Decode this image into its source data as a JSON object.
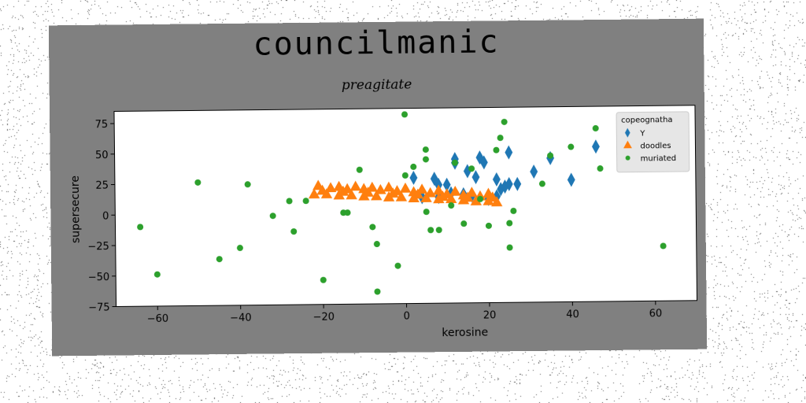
{
  "figure_title": "councilmanic",
  "chart_data": {
    "type": "scatter",
    "title": "preagitate",
    "xlabel": "kerosine",
    "ylabel": "supersecure",
    "xlim": [
      -70,
      70
    ],
    "ylim": [
      -75,
      85
    ],
    "xticks": [
      -60,
      -40,
      -20,
      0,
      20,
      40,
      60
    ],
    "yticks": [
      -75,
      -50,
      -25,
      0,
      25,
      50,
      75
    ],
    "grid": false,
    "legend": {
      "title": "copeognatha",
      "placement": "top-right"
    },
    "series": [
      {
        "name": "Y",
        "marker": "diamond",
        "color": "#1f77b4",
        "points": [
          [
            2,
            28
          ],
          [
            7,
            27
          ],
          [
            8,
            22
          ],
          [
            12,
            40
          ],
          [
            12,
            43
          ],
          [
            15,
            33
          ],
          [
            17,
            28
          ],
          [
            18,
            44
          ],
          [
            19,
            40
          ],
          [
            22,
            26
          ],
          [
            23,
            18
          ],
          [
            24,
            20
          ],
          [
            25,
            48
          ],
          [
            25,
            22
          ],
          [
            27,
            22
          ],
          [
            31,
            32
          ],
          [
            35,
            43
          ],
          [
            40,
            25
          ],
          [
            46,
            52
          ],
          [
            4,
            12
          ],
          [
            8,
            12
          ],
          [
            11,
            15
          ],
          [
            14,
            14
          ],
          [
            16,
            13
          ],
          [
            20,
            10
          ],
          [
            22,
            12
          ],
          [
            10,
            22
          ]
        ]
      },
      {
        "name": "doodles",
        "marker": "triangle",
        "color": "#ff7f0e",
        "points": [
          [
            -21,
            22
          ],
          [
            -18,
            20
          ],
          [
            -16,
            21
          ],
          [
            -14,
            19
          ],
          [
            -12,
            21
          ],
          [
            -10,
            19
          ],
          [
            -8,
            20
          ],
          [
            -6,
            18
          ],
          [
            -4,
            20
          ],
          [
            -2,
            17
          ],
          [
            0,
            19
          ],
          [
            2,
            16
          ],
          [
            4,
            18
          ],
          [
            6,
            15
          ],
          [
            8,
            17
          ],
          [
            10,
            14
          ],
          [
            12,
            16
          ],
          [
            14,
            13
          ],
          [
            16,
            15
          ],
          [
            18,
            12
          ],
          [
            20,
            14
          ],
          [
            21,
            11
          ],
          [
            -22,
            15
          ],
          [
            -19,
            15
          ],
          [
            -16,
            14
          ],
          [
            -13,
            14
          ],
          [
            -10,
            13
          ],
          [
            -7,
            13
          ],
          [
            -4,
            12
          ],
          [
            -1,
            12
          ],
          [
            2,
            11
          ],
          [
            5,
            11
          ],
          [
            8,
            10
          ],
          [
            11,
            10
          ],
          [
            14,
            9
          ],
          [
            17,
            8
          ],
          [
            20,
            8
          ],
          [
            22,
            7
          ],
          [
            -20,
            18
          ],
          [
            -15,
            17
          ],
          [
            -9,
            16
          ],
          [
            -3,
            15
          ],
          [
            3,
            14
          ],
          [
            9,
            12
          ],
          [
            15,
            11
          ]
        ]
      },
      {
        "name": "muriated",
        "marker": "circle",
        "color": "#2ca02c",
        "points": [
          [
            -64,
            -10
          ],
          [
            -60,
            -49
          ],
          [
            -50,
            26
          ],
          [
            -45,
            -37
          ],
          [
            -40,
            -28
          ],
          [
            -38,
            24
          ],
          [
            -32,
            -2
          ],
          [
            -28,
            10
          ],
          [
            -27,
            -15
          ],
          [
            -24,
            10
          ],
          [
            -20,
            -55
          ],
          [
            -15,
            0
          ],
          [
            -14,
            0
          ],
          [
            -11,
            35
          ],
          [
            -8,
            -12
          ],
          [
            -7,
            -26
          ],
          [
            -7,
            -65
          ],
          [
            -2,
            -44
          ],
          [
            0,
            30
          ],
          [
            0,
            80
          ],
          [
            2,
            37
          ],
          [
            5,
            51
          ],
          [
            5,
            43
          ],
          [
            5,
            0
          ],
          [
            6,
            -15
          ],
          [
            8,
            -15
          ],
          [
            11,
            5
          ],
          [
            12,
            40
          ],
          [
            14,
            -10
          ],
          [
            16,
            35
          ],
          [
            18,
            10
          ],
          [
            20,
            -12
          ],
          [
            22,
            50
          ],
          [
            23,
            60
          ],
          [
            24,
            73
          ],
          [
            25,
            -10
          ],
          [
            25,
            -30
          ],
          [
            26,
            0
          ],
          [
            33,
            22
          ],
          [
            35,
            45
          ],
          [
            40,
            52
          ],
          [
            46,
            67
          ],
          [
            47,
            34
          ],
          [
            62,
            -30
          ]
        ]
      }
    ]
  }
}
